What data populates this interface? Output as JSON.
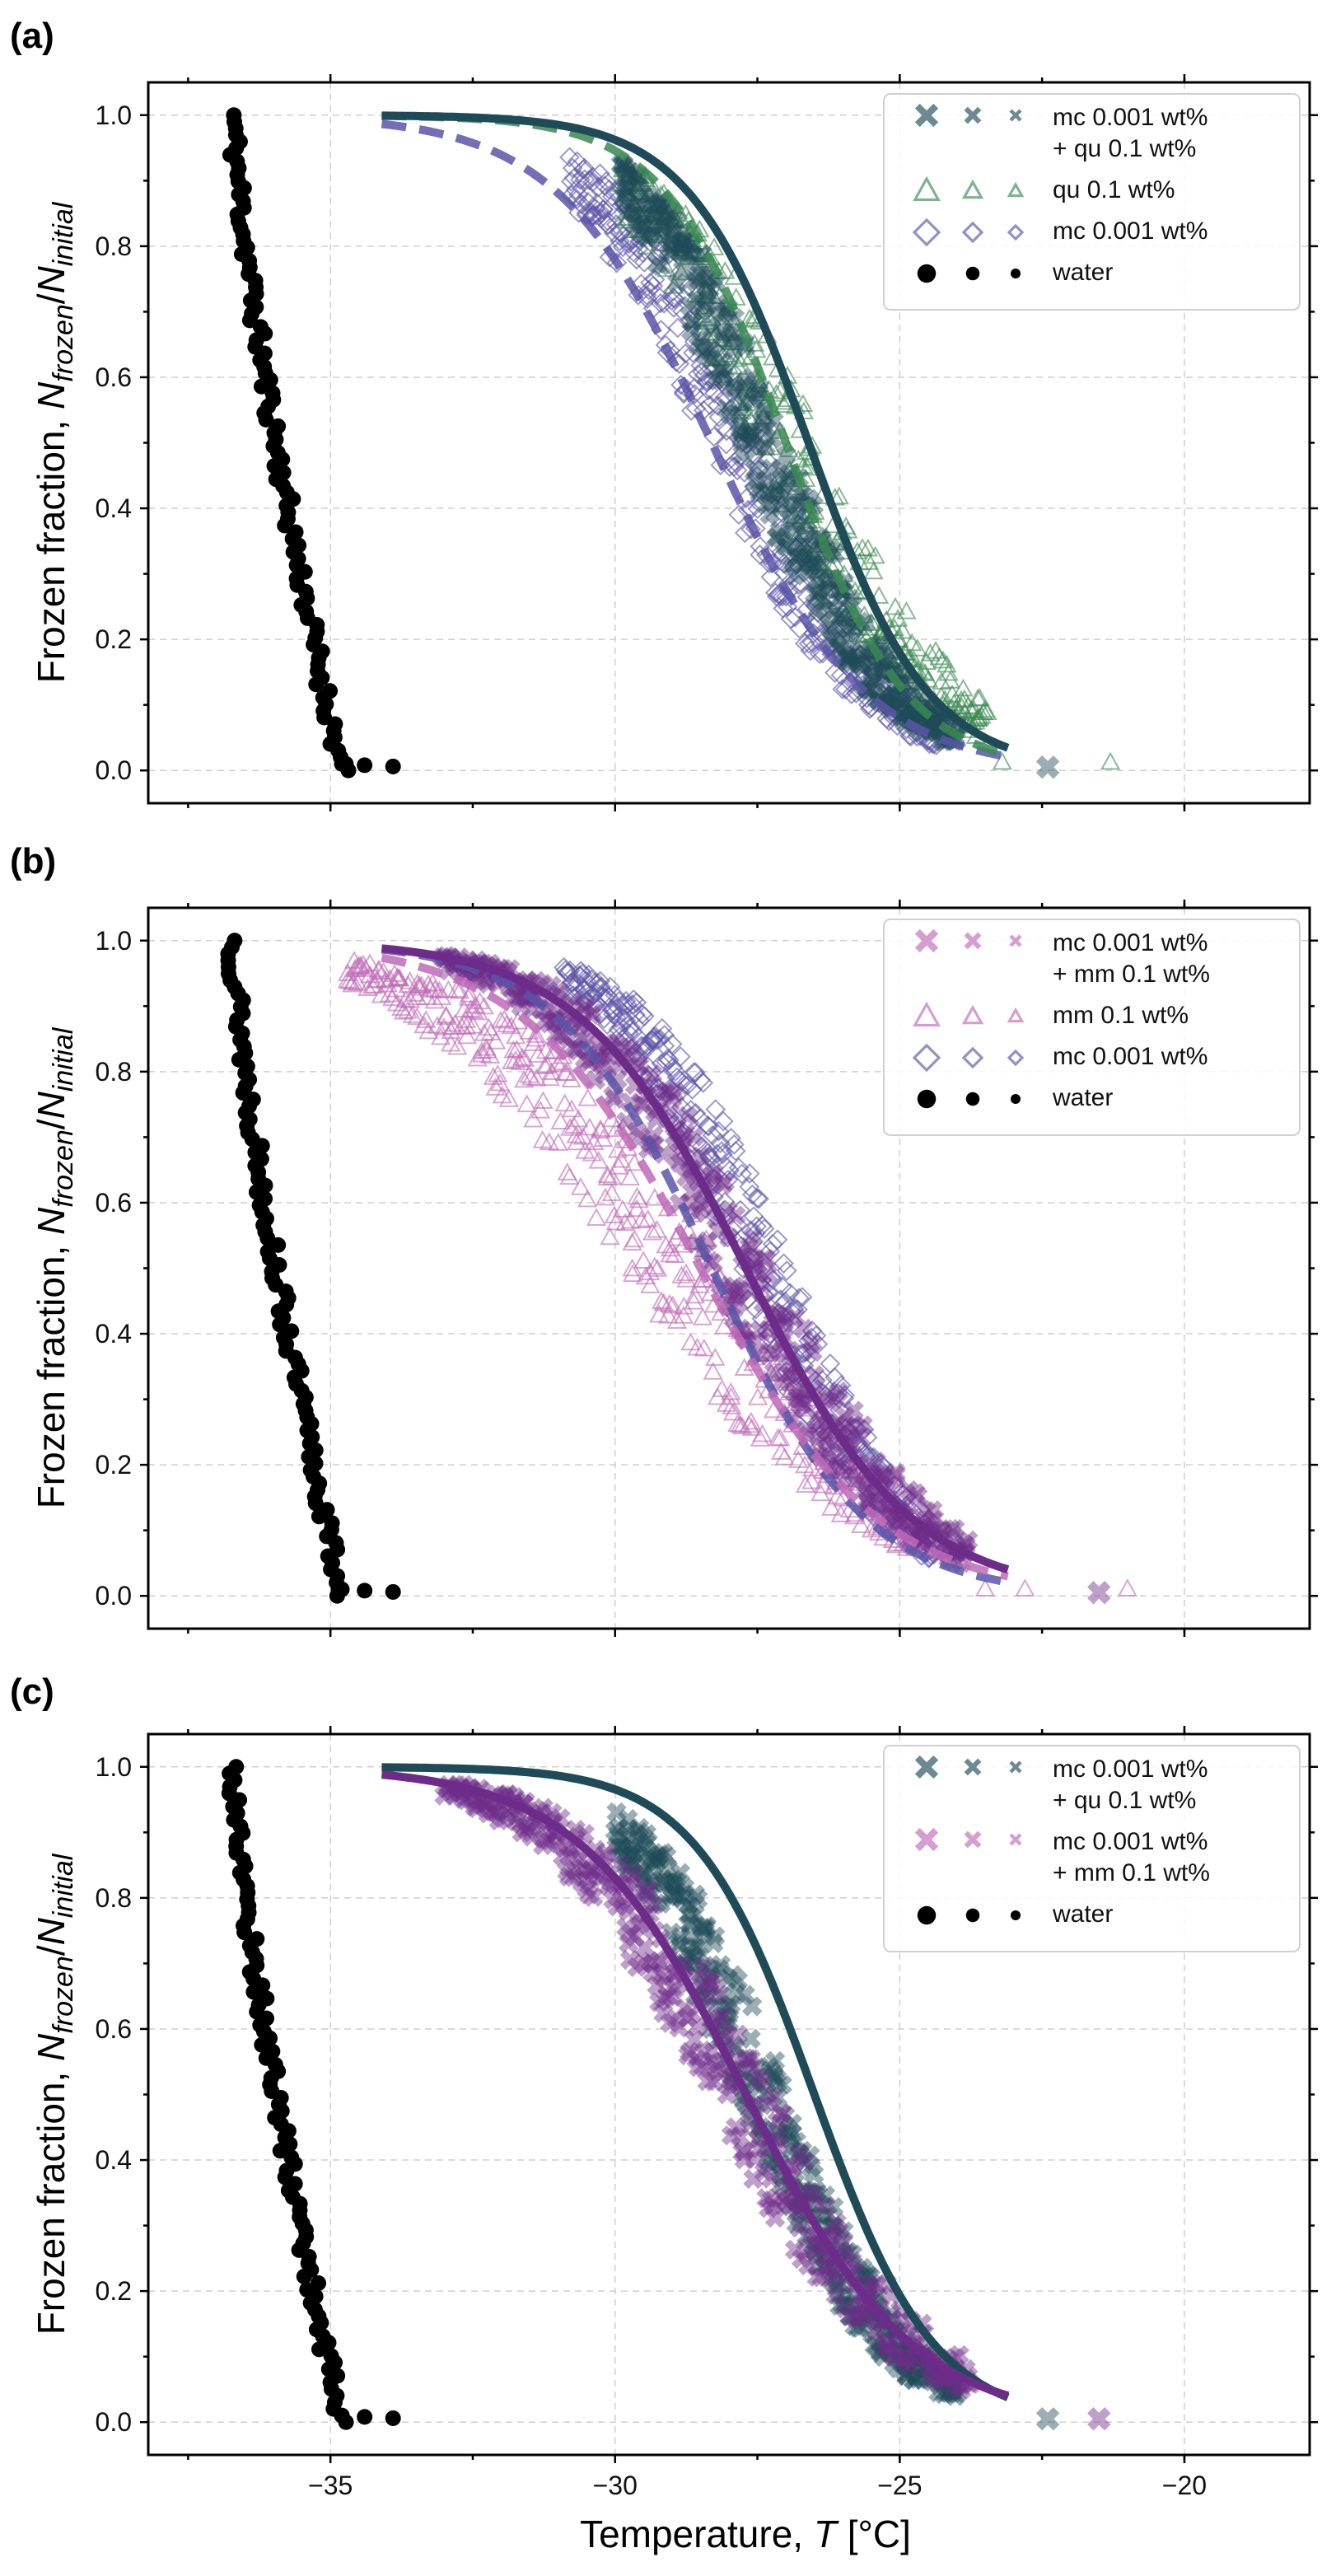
{
  "colors": {
    "water": "#000000",
    "mc": "#5b55a8",
    "qu": "#3a8a52",
    "mm": "#c06ab7",
    "mc_qu": "#1f4b58",
    "mc_mm": "#6e2c8a"
  },
  "chart_data": [
    {
      "panel_label": "(a)",
      "type": "scatter",
      "xlabel_prefix": "Temperature, ",
      "xlabel_var": "T",
      "xlabel_unit": " [°C]",
      "ylabel_prefix": "Frozen fraction, ",
      "ylabel_num": "N",
      "ylabel_num_sub": "frozen",
      "ylabel_den": "N",
      "ylabel_den_sub": "initial",
      "xlim": [
        -38.2,
        -17.8
      ],
      "ylim": [
        -0.05,
        1.05
      ],
      "xticks": [
        -35,
        -30,
        -25,
        -20
      ],
      "xtick_labels": [
        "−35",
        "−30",
        "−25",
        "−20"
      ],
      "yticks": [
        0.0,
        0.2,
        0.4,
        0.6,
        0.8,
        1.0
      ],
      "ytick_labels": [
        "0.0",
        "0.2",
        "0.4",
        "0.6",
        "0.8",
        "1.0"
      ],
      "grid": true,
      "legend_position": "top-right",
      "series": [
        {
          "id": "water",
          "kind": "water",
          "marker": "circle",
          "color_key": "water",
          "x_start": -36.7,
          "x_end": -34.8,
          "n": 100,
          "jitter": 0.45,
          "seed": 11,
          "tail": [
            [
              -34.8,
              0.01
            ],
            [
              -34.4,
              0.008
            ],
            [
              -33.9,
              0.006
            ]
          ]
        },
        {
          "id": "mc",
          "kind": "scatter",
          "marker": "diamond",
          "color_key": "mc",
          "T50": -27.9,
          "width": 1.25,
          "x_start": -30.8,
          "x_end": -24.4,
          "n": 240,
          "spread": 0.55,
          "seed": 23
        },
        {
          "id": "qu",
          "kind": "scatter",
          "marker": "triangle",
          "color_key": "qu",
          "T50": -27.0,
          "width": 1.35,
          "x_start": -29.9,
          "x_end": -23.5,
          "n": 200,
          "spread": 0.6,
          "seed": 37,
          "tail": [
            [
              -23.2,
              0.012
            ],
            [
              -21.3,
              0.012
            ]
          ]
        },
        {
          "id": "mc_qu",
          "kind": "scatter",
          "marker": "x",
          "color_key": "mc_qu",
          "T50": -27.4,
          "width": 1.15,
          "x_start": -29.9,
          "x_end": -24.0,
          "n": 240,
          "spread": 0.45,
          "seed": 53,
          "tail": [
            [
              -22.4,
              0.005
            ]
          ]
        }
      ],
      "fits": [
        {
          "id": "mc_fit",
          "style": "dashed",
          "color_key": "mc",
          "T50": -28.3,
          "width": 1.35,
          "x_start": -34.1,
          "x_end": -23.1
        },
        {
          "id": "qu_fit",
          "style": "dashed",
          "color_key": "qu",
          "T50": -27.0,
          "width": 1.05,
          "x_start": -34.1,
          "x_end": -23.1
        },
        {
          "id": "mc_qu_fit",
          "style": "solid",
          "color_key": "mc_qu",
          "T50": -26.6,
          "width": 1.05,
          "x_start": -34.1,
          "x_end": -23.1
        }
      ],
      "legend": [
        {
          "marker": "x",
          "color_key": "mc_qu",
          "lines": [
            "mc 0.001 wt%",
            "+ qu 0.1 wt%"
          ]
        },
        {
          "marker": "triangle",
          "color_key": "qu",
          "lines": [
            "qu 0.1 wt%"
          ]
        },
        {
          "marker": "diamond",
          "color_key": "mc",
          "lines": [
            "mc 0.001 wt%"
          ]
        },
        {
          "marker": "circle",
          "color_key": "water",
          "lines": [
            "water"
          ]
        }
      ]
    },
    {
      "panel_label": "(b)",
      "type": "scatter",
      "xlabel_prefix": "Temperature, ",
      "xlabel_var": "T",
      "xlabel_unit": " [°C]",
      "ylabel_prefix": "Frozen fraction, ",
      "ylabel_num": "N",
      "ylabel_num_sub": "frozen",
      "ylabel_den": "N",
      "ylabel_den_sub": "initial",
      "xlim": [
        -38.2,
        -17.8
      ],
      "ylim": [
        -0.05,
        1.05
      ],
      "xticks": [
        -35,
        -30,
        -25,
        -20
      ],
      "xtick_labels": [
        "−35",
        "−30",
        "−25",
        "−20"
      ],
      "yticks": [
        0.0,
        0.2,
        0.4,
        0.6,
        0.8,
        1.0
      ],
      "ytick_labels": [
        "0.0",
        "0.2",
        "0.4",
        "0.6",
        "0.8",
        "1.0"
      ],
      "grid": true,
      "legend_position": "top-right",
      "series": [
        {
          "id": "water",
          "kind": "water",
          "marker": "circle",
          "color_key": "water",
          "x_start": -36.7,
          "x_end": -34.8,
          "n": 100,
          "jitter": 0.45,
          "seed": 13,
          "tail": [
            [
              -34.8,
              0.01
            ],
            [
              -34.4,
              0.008
            ],
            [
              -33.9,
              0.006
            ]
          ]
        },
        {
          "id": "mc",
          "kind": "scatter",
          "marker": "diamond",
          "color_key": "mc",
          "T50": -27.4,
          "width": 1.2,
          "x_start": -30.9,
          "x_end": -24.4,
          "n": 240,
          "spread": 0.5,
          "seed": 29
        },
        {
          "id": "mm",
          "kind": "scatter",
          "marker": "triangle",
          "color_key": "mm",
          "T50": -28.9,
          "width": 1.9,
          "x_start": -34.7,
          "x_end": -24.5,
          "n": 260,
          "spread": 0.9,
          "seed": 41,
          "tail": [
            [
              -23.5,
              0.01
            ],
            [
              -22.8,
              0.01
            ],
            [
              -21.0,
              0.01
            ]
          ]
        },
        {
          "id": "mc_mm",
          "kind": "scatter",
          "marker": "x",
          "color_key": "mc_mm",
          "T50": -27.8,
          "width": 1.5,
          "x_start": -33.0,
          "x_end": -23.8,
          "n": 240,
          "spread": 0.6,
          "seed": 59,
          "tail": [
            [
              -21.5,
              0.005
            ]
          ]
        }
      ],
      "fits": [
        {
          "id": "mc_fit",
          "style": "dashed",
          "color_key": "mc",
          "T50": -28.3,
          "width": 1.35,
          "x_start": -34.1,
          "x_end": -23.1
        },
        {
          "id": "mm_fit",
          "style": "dashed",
          "color_key": "mm",
          "T50": -28.5,
          "width": 1.55,
          "x_start": -34.1,
          "x_end": -23.1
        },
        {
          "id": "mc_mm_fit",
          "style": "solid",
          "color_key": "mc_mm",
          "T50": -27.7,
          "width": 1.45,
          "x_start": -34.1,
          "x_end": -23.1
        }
      ],
      "legend": [
        {
          "marker": "x",
          "color_key": "mm",
          "lines": [
            "mc 0.001 wt%",
            "+ mm 0.1 wt%"
          ]
        },
        {
          "marker": "triangle",
          "color_key": "mm",
          "lines": [
            "mm 0.1 wt%"
          ]
        },
        {
          "marker": "diamond",
          "color_key": "mc",
          "lines": [
            "mc 0.001 wt%"
          ]
        },
        {
          "marker": "circle",
          "color_key": "water",
          "lines": [
            "water"
          ]
        }
      ]
    },
    {
      "panel_label": "(c)",
      "type": "scatter",
      "xlabel_prefix": "Temperature, ",
      "xlabel_var": "T",
      "xlabel_unit": " [°C]",
      "ylabel_prefix": "Frozen fraction, ",
      "ylabel_num": "N",
      "ylabel_num_sub": "frozen",
      "ylabel_den": "N",
      "ylabel_den_sub": "initial",
      "xlim": [
        -38.2,
        -17.8
      ],
      "ylim": [
        -0.05,
        1.05
      ],
      "xticks": [
        -35,
        -30,
        -25,
        -20
      ],
      "xtick_labels": [
        "−35",
        "−30",
        "−25",
        "−20"
      ],
      "yticks": [
        0.0,
        0.2,
        0.4,
        0.6,
        0.8,
        1.0
      ],
      "ytick_labels": [
        "0.0",
        "0.2",
        "0.4",
        "0.6",
        "0.8",
        "1.0"
      ],
      "grid": true,
      "legend_position": "top-right",
      "series": [
        {
          "id": "water",
          "kind": "water",
          "marker": "circle",
          "color_key": "water",
          "x_start": -36.7,
          "x_end": -34.8,
          "n": 100,
          "jitter": 0.45,
          "seed": 17,
          "tail": [
            [
              -34.8,
              0.01
            ],
            [
              -34.4,
              0.008
            ],
            [
              -33.9,
              0.006
            ]
          ]
        },
        {
          "id": "mc_qu",
          "kind": "scatter",
          "marker": "x",
          "color_key": "mc_qu",
          "T50": -27.4,
          "width": 1.15,
          "x_start": -30.0,
          "x_end": -24.0,
          "n": 240,
          "spread": 0.45,
          "seed": 61,
          "tail": [
            [
              -22.4,
              0.005
            ]
          ]
        },
        {
          "id": "mc_mm",
          "kind": "scatter",
          "marker": "x",
          "color_key": "mc_mm",
          "T50": -27.8,
          "width": 1.5,
          "x_start": -33.0,
          "x_end": -23.8,
          "n": 240,
          "spread": 0.6,
          "seed": 67,
          "tail": [
            [
              -21.5,
              0.005
            ]
          ]
        }
      ],
      "fits": [
        {
          "id": "mc_qu_fit",
          "style": "solid",
          "color_key": "mc_qu",
          "T50": -26.5,
          "width": 1.05,
          "x_start": -34.1,
          "x_end": -23.1
        },
        {
          "id": "mc_mm_fit",
          "style": "solid",
          "color_key": "mc_mm",
          "T50": -27.7,
          "width": 1.45,
          "x_start": -34.1,
          "x_end": -23.1
        }
      ],
      "legend": [
        {
          "marker": "x",
          "color_key": "mc_qu",
          "lines": [
            "mc 0.001 wt%",
            "+ qu 0.1 wt%"
          ]
        },
        {
          "marker": "x",
          "color_key": "mm",
          "lines": [
            "mc 0.001 wt%",
            "+ mm 0.1 wt%"
          ]
        },
        {
          "marker": "circle",
          "color_key": "water",
          "lines": [
            "water"
          ]
        }
      ]
    }
  ]
}
